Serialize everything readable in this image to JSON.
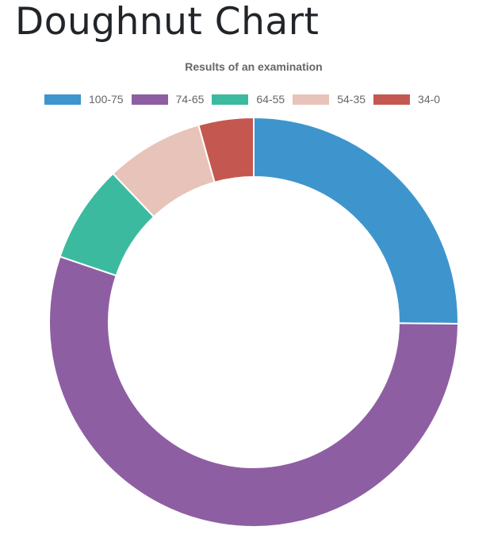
{
  "page": {
    "title": "Doughnut Chart"
  },
  "chart_data": {
    "type": "doughnut",
    "title": "Results of an examination",
    "categories": [
      "100-75",
      "74-65",
      "64-55",
      "54-35",
      "34-0"
    ],
    "values": [
      26,
      57,
      8,
      8,
      4.5
    ],
    "colors": [
      "#3e95cd",
      "#8e5ea2",
      "#3cba9f",
      "#e8c3b9",
      "#c45850"
    ],
    "legend_position": "top",
    "border_color": "#ffffff"
  }
}
